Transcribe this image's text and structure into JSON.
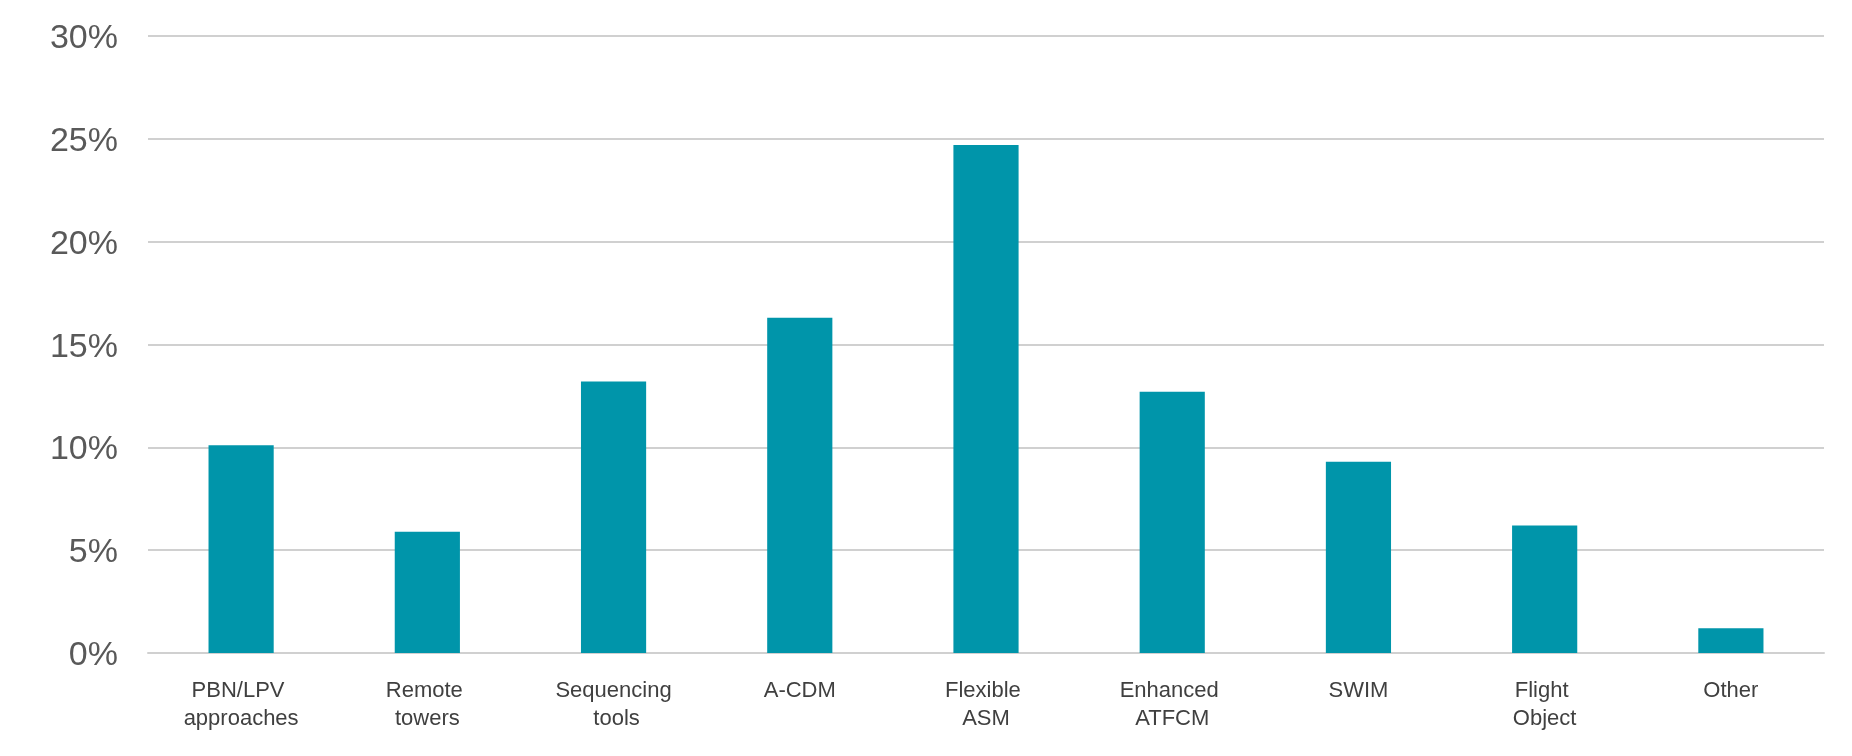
{
  "chart_data": {
    "type": "bar",
    "categories": [
      "PBN/LPV approaches",
      "Remote towers",
      "Sequencing tools",
      "A-CDM",
      "Flexible ASM",
      "Enhanced ATFCM",
      "SWIM",
      "Flight Object",
      "Other"
    ],
    "values": [
      10.1,
      5.9,
      13.2,
      16.3,
      24.7,
      12.7,
      9.3,
      6.2,
      1.2
    ],
    "color": "#0095aa",
    "ylim": [
      0,
      30
    ],
    "yticks": [
      {
        "value": 0,
        "label": "0%"
      },
      {
        "value": 5,
        "label": "5%"
      },
      {
        "value": 10,
        "label": "10%"
      },
      {
        "value": 15,
        "label": "15%"
      },
      {
        "value": 20,
        "label": "20%"
      },
      {
        "value": 25,
        "label": "25%"
      },
      {
        "value": 30,
        "label": "30%"
      }
    ],
    "grid": "y"
  }
}
